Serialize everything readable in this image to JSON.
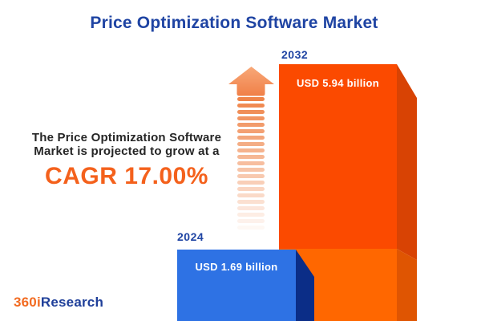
{
  "title": {
    "text": "Price Optimization Software Market",
    "color": "#1f44a3"
  },
  "annotation": {
    "line1": "The Price Optimization Software",
    "line2": "Market is projected to grow at a",
    "cagr_label": "CAGR 17.00%",
    "text_color": "#262626",
    "cagr_color": "#f4611c"
  },
  "chart_data": {
    "type": "bar",
    "title": "Price Optimization Software Market",
    "categories": [
      "2024",
      "2032"
    ],
    "values": [
      1.69,
      5.94
    ],
    "unit": "USD billion",
    "value_labels": [
      "USD 1.69 billion",
      "USD 5.94 billion"
    ],
    "cagr_percent": 17.0,
    "bar_orientation": "vertical",
    "year_label_color": "#1f44a3",
    "value_label_color": "#ffffff",
    "bars": [
      {
        "year": "2024",
        "value_label": "USD 1.69 billion",
        "front_color": "#2e72e4",
        "side_color": "#0b2d87"
      },
      {
        "year": "2032",
        "value_label": "USD 5.94 billion",
        "front_color_upper": "#fb4a00",
        "front_color_lower": "#ff6700",
        "side_color_upper": "#d84304",
        "side_color_lower": "#df5502"
      }
    ]
  },
  "icons": {
    "growth_arrow": "striped-up-arrow",
    "arrow_head_color_top": "#f8a878",
    "arrow_head_color_bottom": "#f08048",
    "stripe_color": "#ef8449",
    "stripe_count": 21
  },
  "logo": {
    "part1": "360i",
    "part2": "Research",
    "part1_color": "#f26b21",
    "part2_color": "#20409a"
  }
}
